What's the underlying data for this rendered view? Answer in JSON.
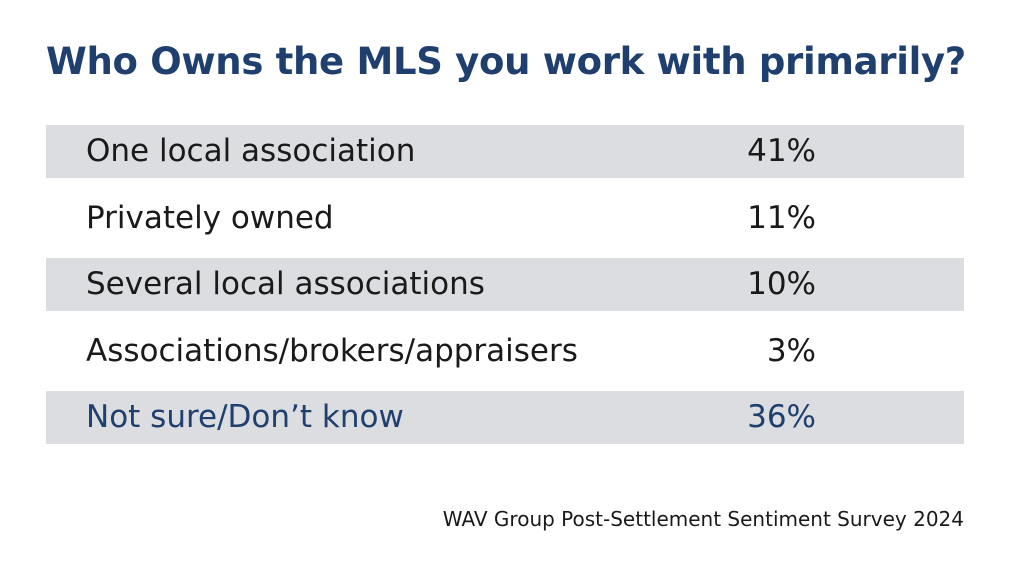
{
  "chart_data": {
    "type": "table",
    "title": "Who Owns the MLS you work with primarily?",
    "rows": [
      {
        "label": "One local association",
        "value": "41%"
      },
      {
        "label": "Privately owned",
        "value": "11%"
      },
      {
        "label": "Several local associations",
        "value": "10%"
      },
      {
        "label": "Associations/brokers/appraisers",
        "value": "3%"
      },
      {
        "label": "Not sure/Don’t know",
        "value": "36%"
      }
    ],
    "values": [
      41,
      11,
      10,
      3,
      36
    ],
    "source": "WAV Group Post-Settlement Sentiment Survey 2024"
  },
  "colors": {
    "accent": "#1f3f6e",
    "row_shade": "#dcdde0",
    "text": "#1a1a1a"
  }
}
